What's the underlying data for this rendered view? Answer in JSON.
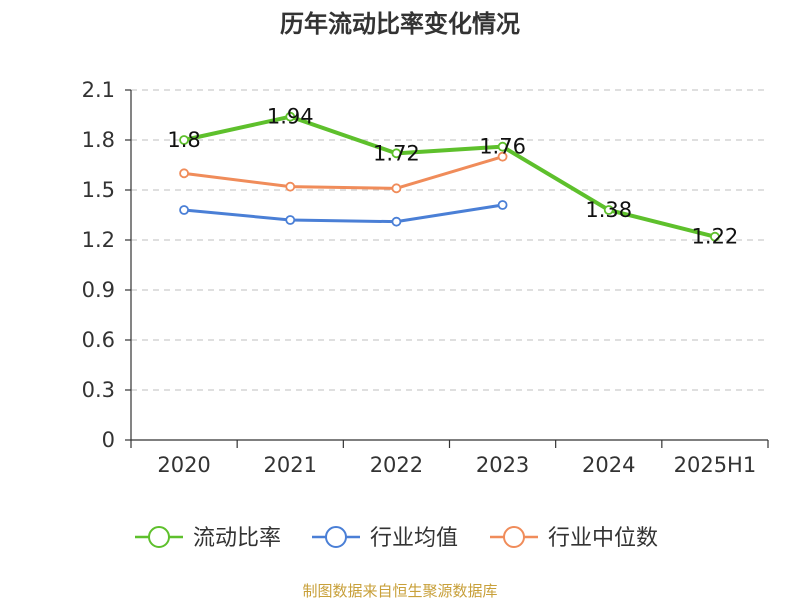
{
  "chart_data": {
    "type": "line",
    "title": "历年流动比率变化情况",
    "categories": [
      "2020",
      "2021",
      "2022",
      "2023",
      "2024",
      "2025H1"
    ],
    "ylim": [
      0,
      2.1
    ],
    "yticks": [
      "0",
      "0.3",
      "0.6",
      "0.9",
      "1.2",
      "1.5",
      "1.8",
      "2.1"
    ],
    "grid": true,
    "legend_position": "bottom",
    "series": [
      {
        "name": "流动比率",
        "color": "#5ec02c",
        "values": [
          1.8,
          1.94,
          1.72,
          1.76,
          1.38,
          1.22
        ],
        "labels": [
          "1.8",
          "1.94",
          "1.72",
          "1.76",
          "1.38",
          "1.22"
        ]
      },
      {
        "name": "行业均值",
        "color": "#4a7fd6",
        "values": [
          1.38,
          1.32,
          1.31,
          1.41,
          null,
          null
        ]
      },
      {
        "name": "行业中位数",
        "color": "#f08c5a",
        "values": [
          1.6,
          1.52,
          1.51,
          1.7,
          null,
          null
        ]
      }
    ]
  },
  "source": "制图数据来自恒生聚源数据库"
}
